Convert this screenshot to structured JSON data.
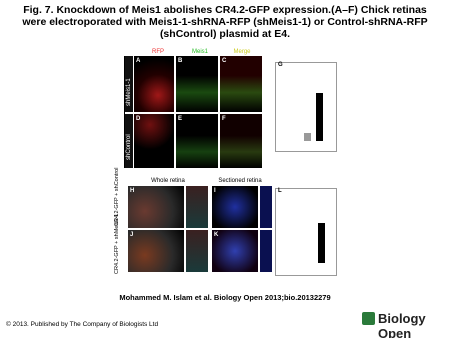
{
  "header": {
    "title": "Fig. 7. Knockdown of Meis1 abolishes CR4.2-GFP expression.(A–F) Chick retinas were electroporated with Meis1-1-shRNA-RFP (shMeis1-1) or Control-shRNA-RFP (shControl) plasmid at E4."
  },
  "figure": {
    "columns": [
      "RFP",
      "Meis1",
      "Merge"
    ],
    "rows": [
      "shMeis1-1",
      "shControl"
    ],
    "panels": [
      "A",
      "B",
      "C",
      "D",
      "E",
      "F",
      "G",
      "H",
      "I",
      "J",
      "K",
      "L"
    ],
    "bottom_headers": [
      "Whole retina",
      "Sectioned retina"
    ],
    "bottom_rows": [
      "CR4.2-GFP + shControl",
      "CR4.2-GFP + shMeis1-1"
    ]
  },
  "citation": "Mohammed M. Islam et al. Biology Open 2013;bio.20132279",
  "footer": {
    "copyright": "© 2013. Published by The Company of Biologists Ltd",
    "logo": "Biology Open"
  }
}
